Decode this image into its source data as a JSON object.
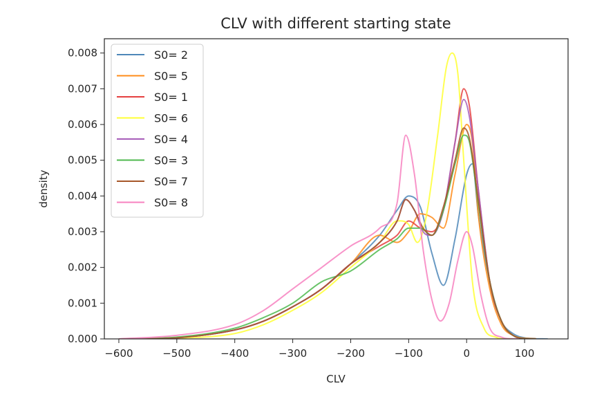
{
  "chart_data": {
    "type": "line",
    "title": "CLV with different starting state",
    "xlabel": "CLV",
    "ylabel": "density",
    "xlim": [
      -625,
      175
    ],
    "ylim": [
      0,
      0.0084
    ],
    "xticks": [
      -600,
      -500,
      -400,
      -300,
      -200,
      -100,
      0,
      100
    ],
    "xtick_labels": [
      "−600",
      "−500",
      "−400",
      "−300",
      "−200",
      "−100",
      "0",
      "100"
    ],
    "yticks": [
      0,
      0.001,
      0.002,
      0.003,
      0.004,
      0.005,
      0.006,
      0.007,
      0.008
    ],
    "ytick_labels": [
      "0.000",
      "0.001",
      "0.002",
      "0.003",
      "0.004",
      "0.005",
      "0.006",
      "0.007",
      "0.008"
    ],
    "grid": false,
    "legend_position": "top-left",
    "series": [
      {
        "name": "S0= 2",
        "color": "#4e87b8",
        "x": [
          -600,
          -500,
          -400,
          -350,
          -300,
          -250,
          -200,
          -150,
          -120,
          -100,
          -80,
          -60,
          -40,
          -20,
          0,
          10,
          20,
          40,
          60,
          80,
          100,
          140
        ],
        "y": [
          0.0,
          3e-05,
          0.00025,
          0.0005,
          0.0009,
          0.0014,
          0.0021,
          0.0029,
          0.0036,
          0.004,
          0.0037,
          0.0024,
          0.0015,
          0.0028,
          0.0046,
          0.0049,
          0.0035,
          0.0016,
          0.0005,
          0.00015,
          3e-05,
          0.0
        ]
      },
      {
        "name": "S0= 5",
        "color": "#ff8c1a",
        "x": [
          -600,
          -500,
          -400,
          -350,
          -300,
          -250,
          -200,
          -150,
          -120,
          -100,
          -80,
          -60,
          -40,
          -20,
          0,
          10,
          20,
          40,
          60,
          80,
          120
        ],
        "y": [
          0.0,
          3e-05,
          0.00025,
          0.0005,
          0.0009,
          0.0014,
          0.0021,
          0.0029,
          0.0027,
          0.003,
          0.0035,
          0.0034,
          0.0031,
          0.0046,
          0.006,
          0.0055,
          0.0035,
          0.0014,
          0.0004,
          0.0001,
          0.0
        ]
      },
      {
        "name": "S0= 1",
        "color": "#e53f3f",
        "x": [
          -600,
          -500,
          -400,
          -350,
          -300,
          -250,
          -200,
          -150,
          -120,
          -100,
          -80,
          -60,
          -40,
          -20,
          -5,
          5,
          20,
          40,
          60,
          80,
          120
        ],
        "y": [
          0.0,
          3e-05,
          0.00025,
          0.0005,
          0.0009,
          0.0014,
          0.0021,
          0.0026,
          0.0029,
          0.0033,
          0.0031,
          0.003,
          0.0036,
          0.0055,
          0.007,
          0.0065,
          0.0042,
          0.0016,
          0.0005,
          0.0001,
          0.0
        ]
      },
      {
        "name": "S0= 6",
        "color": "#ffff33",
        "x": [
          -600,
          -500,
          -400,
          -350,
          -300,
          -250,
          -200,
          -150,
          -120,
          -100,
          -85,
          -70,
          -50,
          -35,
          -25,
          -15,
          -5,
          10,
          30,
          50,
          80
        ],
        "y": [
          0.0,
          2e-05,
          0.00015,
          0.0004,
          0.0008,
          0.0013,
          0.002,
          0.0027,
          0.0033,
          0.0032,
          0.0027,
          0.0034,
          0.0057,
          0.0076,
          0.008,
          0.0074,
          0.005,
          0.0016,
          0.0003,
          5e-05,
          0.0
        ]
      },
      {
        "name": "S0= 4",
        "color": "#a75db9",
        "x": [
          -600,
          -500,
          -400,
          -350,
          -300,
          -250,
          -200,
          -150,
          -120,
          -105,
          -90,
          -75,
          -60,
          -40,
          -20,
          -5,
          5,
          20,
          40,
          60,
          80,
          120
        ],
        "y": [
          0.0,
          3e-05,
          0.00025,
          0.0005,
          0.0009,
          0.0014,
          0.0021,
          0.0027,
          0.0033,
          0.0039,
          0.0036,
          0.003,
          0.0029,
          0.0036,
          0.0055,
          0.0067,
          0.0062,
          0.0042,
          0.0016,
          0.0005,
          0.0001,
          0.0
        ]
      },
      {
        "name": "S0= 3",
        "color": "#4db84e",
        "x": [
          -600,
          -500,
          -400,
          -350,
          -300,
          -250,
          -200,
          -150,
          -120,
          -100,
          -80,
          -60,
          -40,
          -20,
          -5,
          5,
          20,
          40,
          60,
          80,
          120
        ],
        "y": [
          0.0,
          5e-05,
          0.0003,
          0.0006,
          0.001,
          0.0016,
          0.0019,
          0.0025,
          0.0028,
          0.0031,
          0.0031,
          0.0029,
          0.0036,
          0.0049,
          0.0057,
          0.0055,
          0.0038,
          0.0016,
          0.0005,
          0.0001,
          0.0
        ]
      },
      {
        "name": "S0= 7",
        "color": "#a65628",
        "x": [
          -600,
          -500,
          -400,
          -350,
          -300,
          -250,
          -200,
          -150,
          -120,
          -105,
          -90,
          -75,
          -60,
          -40,
          -20,
          -5,
          5,
          20,
          40,
          60,
          80,
          120
        ],
        "y": [
          0.0,
          3e-05,
          0.00025,
          0.0005,
          0.0009,
          0.0014,
          0.0021,
          0.0027,
          0.0033,
          0.0039,
          0.0036,
          0.0031,
          0.0029,
          0.0037,
          0.005,
          0.0059,
          0.0056,
          0.0039,
          0.0016,
          0.0005,
          0.0001,
          0.0
        ]
      },
      {
        "name": "S0= 8",
        "color": "#f781bf",
        "x": [
          -600,
          -500,
          -400,
          -350,
          -300,
          -250,
          -200,
          -150,
          -120,
          -105,
          -90,
          -75,
          -60,
          -45,
          -30,
          -15,
          0,
          10,
          25,
          40,
          60,
          90
        ],
        "y": [
          0.0,
          0.0001,
          0.0004,
          0.0008,
          0.0014,
          0.002,
          0.0026,
          0.0031,
          0.0038,
          0.0057,
          0.0046,
          0.0025,
          0.0011,
          0.0005,
          0.001,
          0.0022,
          0.003,
          0.0026,
          0.0012,
          0.0003,
          5e-05,
          0.0
        ]
      }
    ]
  }
}
